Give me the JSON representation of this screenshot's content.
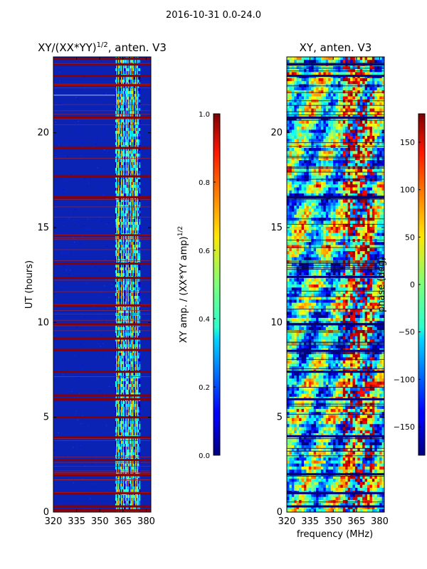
{
  "chart_data": {
    "type": "heatmap",
    "suptitle": "2016-10-31 0.0-24.0",
    "xlabel": "frequency (MHz)",
    "panels": [
      {
        "name": "amplitude",
        "title_main": "XY/(XX*YY)",
        "title_exp": "1/2",
        "title_suffix": ", anten. V3",
        "ylabel": "UT (hours)",
        "xlim": [
          320,
          383
        ],
        "ylim": [
          0,
          24
        ],
        "xticks": [
          320,
          335,
          350,
          365,
          380
        ],
        "yticks": [
          0,
          5,
          10,
          15,
          20
        ],
        "colorbar": {
          "label_main": "XY amp. / (XX*YY amp)",
          "label_exp": "1/2",
          "range": [
            0.0,
            1.0
          ],
          "ticks": [
            0.0,
            0.2,
            0.4,
            0.6,
            0.8,
            1.0
          ],
          "tick_labels": [
            "0.0",
            "0.2",
            "0.4",
            "0.6",
            "0.8",
            "1.0"
          ]
        },
        "saturated_ut_hours": [
          0.1,
          0.3,
          1.0,
          1.95,
          2.75,
          3.95,
          5.0,
          5.95,
          6.15,
          7.4,
          8.55,
          9.15,
          9.9,
          10.9,
          12.35,
          13.1,
          14.6,
          16.6,
          17.7,
          19.2,
          20.8,
          22.5,
          23.0,
          23.6,
          23.9
        ],
        "active_band_mhz": [
          360,
          376
        ]
      },
      {
        "name": "phase",
        "title_main": "XY, anten. V3",
        "title_exp": "",
        "title_suffix": "",
        "ylabel": "",
        "xlim": [
          320,
          383
        ],
        "ylim": [
          0,
          24
        ],
        "xticks": [
          320,
          335,
          350,
          365,
          380
        ],
        "yticks": [
          0,
          5,
          10,
          15,
          20
        ],
        "colorbar": {
          "label_main": "phase (deg)",
          "label_exp": "",
          "range": [
            -180,
            180
          ],
          "ticks": [
            -150,
            -100,
            -50,
            0,
            50,
            100,
            150
          ],
          "tick_labels": [
            "−150",
            "−100",
            "−50",
            "0",
            "50",
            "100",
            "150"
          ]
        },
        "flagged_ut_hours": [
          0.3,
          1.0,
          2.0,
          4.0,
          5.95,
          7.4,
          8.5,
          9.9,
          12.4,
          16.6,
          20.8,
          23.0,
          23.6
        ]
      }
    ]
  }
}
